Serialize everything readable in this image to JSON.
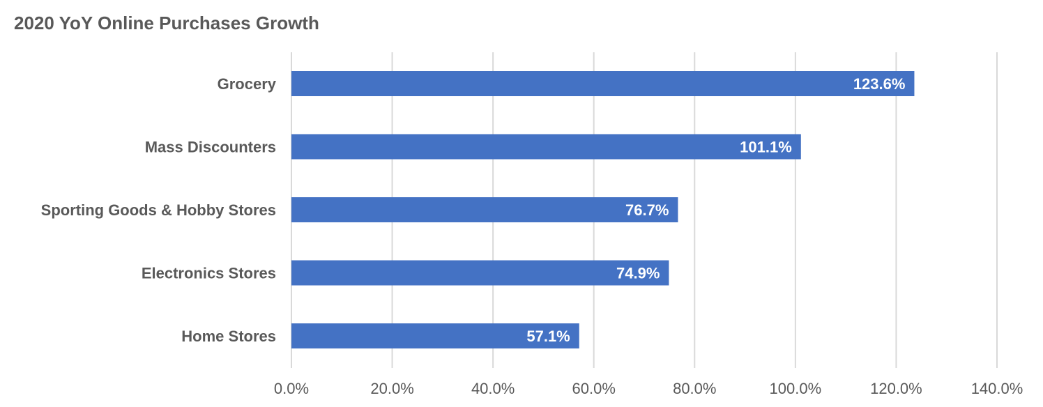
{
  "chart_data": {
    "type": "bar",
    "orientation": "horizontal",
    "title": "2020 YoY Online Purchases Growth",
    "categories": [
      "Grocery",
      "Mass Discounters",
      "Sporting Goods & Hobby Stores",
      "Electronics Stores",
      "Home Stores"
    ],
    "values": [
      123.6,
      101.1,
      76.7,
      74.9,
      57.1
    ],
    "data_labels": [
      "123.6%",
      "101.1%",
      "76.7%",
      "74.9%",
      "57.1%"
    ],
    "xlim": [
      0,
      140
    ],
    "x_ticks": [
      0,
      20,
      40,
      60,
      80,
      100,
      120,
      140
    ],
    "x_tick_labels": [
      "0.0%",
      "20.0%",
      "40.0%",
      "60.0%",
      "80.0%",
      "100.0%",
      "120.0%",
      "140.0%"
    ],
    "xlabel": "",
    "ylabel": "",
    "grid": "vertical",
    "legend": "none",
    "colors": {
      "bar": "#4472C4",
      "text": "#595959",
      "grid": "#D9D9D9"
    }
  }
}
